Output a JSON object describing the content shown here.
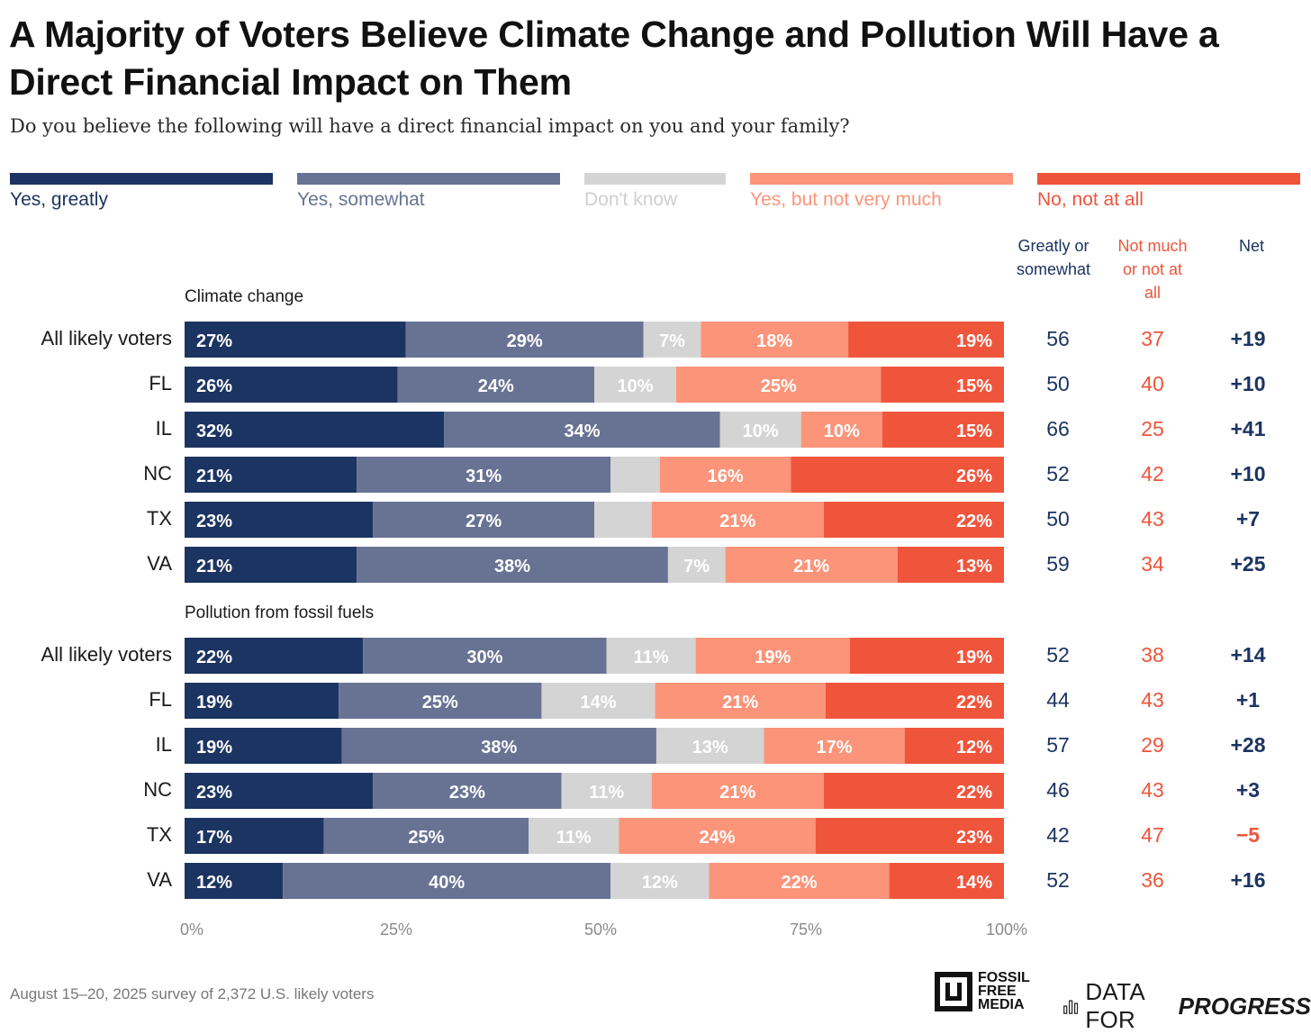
{
  "colors": {
    "yes_greatly": "#1c3461",
    "yes_somewhat": "#687394",
    "dont_know": "#d4d4d4",
    "yes_not_much": "#fb9479",
    "no_not_at_all": "#ef553b",
    "text_blue": "#1c3461",
    "text_red": "#ef553b",
    "dk_label": "#cfcfcf"
  },
  "chart_data": {
    "type": "bar",
    "orientation": "horizontal-stacked",
    "title": "A Majority of Voters Believe Climate Change and Pollution Will Have a Direct Financial Impact on Them",
    "subtitle": "Do you believe the following will have a direct financial impact on you and your family?",
    "legend": {
      "placement": "top",
      "items": [
        "Yes, greatly",
        "Yes, somewhat",
        "Don't know",
        "Yes, but not very much",
        "No, not at all"
      ]
    },
    "xlim": [
      0,
      100
    ],
    "x_ticks": [
      "0%",
      "25%",
      "50%",
      "75%",
      "100%"
    ],
    "columns": [
      "Greatly or somewhat",
      "Not much or not at all",
      "Net"
    ],
    "groups": [
      {
        "name": "Climate change",
        "rows": [
          {
            "label": "All likely voters",
            "values": [
              27,
              29,
              7,
              18,
              19
            ],
            "labels": [
              "27%",
              "29%",
              "7%",
              "18%",
              "19%"
            ],
            "greatly_or_somewhat": "56",
            "not_much": "37",
            "net": "+19"
          },
          {
            "label": "FL",
            "values": [
              26,
              24,
              10,
              25,
              15
            ],
            "labels": [
              "26%",
              "24%",
              "10%",
              "25%",
              "15%"
            ],
            "greatly_or_somewhat": "50",
            "not_much": "40",
            "net": "+10"
          },
          {
            "label": "IL",
            "values": [
              32,
              34,
              10,
              10,
              15
            ],
            "labels": [
              "32%",
              "34%",
              "10%",
              "10%",
              "15%"
            ],
            "greatly_or_somewhat": "66",
            "not_much": "25",
            "net": "+41"
          },
          {
            "label": "NC",
            "values": [
              21,
              31,
              6,
              16,
              26
            ],
            "labels": [
              "21%",
              "31%",
              "",
              "16%",
              "26%"
            ],
            "greatly_or_somewhat": "52",
            "not_much": "42",
            "net": "+10"
          },
          {
            "label": "TX",
            "values": [
              23,
              27,
              7,
              21,
              22
            ],
            "labels": [
              "23%",
              "27%",
              "",
              "21%",
              "22%"
            ],
            "greatly_or_somewhat": "50",
            "not_much": "43",
            "net": "+7"
          },
          {
            "label": "VA",
            "values": [
              21,
              38,
              7,
              21,
              13
            ],
            "labels": [
              "21%",
              "38%",
              "7%",
              "21%",
              "13%"
            ],
            "greatly_or_somewhat": "59",
            "not_much": "34",
            "net": "+25"
          }
        ]
      },
      {
        "name": "Pollution from fossil fuels",
        "rows": [
          {
            "label": "All likely voters",
            "values": [
              22,
              30,
              11,
              19,
              19
            ],
            "labels": [
              "22%",
              "30%",
              "11%",
              "19%",
              "19%"
            ],
            "greatly_or_somewhat": "52",
            "not_much": "38",
            "net": "+14"
          },
          {
            "label": "FL",
            "values": [
              19,
              25,
              14,
              21,
              22
            ],
            "labels": [
              "19%",
              "25%",
              "14%",
              "21%",
              "22%"
            ],
            "greatly_or_somewhat": "44",
            "not_much": "43",
            "net": "+1"
          },
          {
            "label": "IL",
            "values": [
              19,
              38,
              13,
              17,
              12
            ],
            "labels": [
              "19%",
              "38%",
              "13%",
              "17%",
              "12%"
            ],
            "greatly_or_somewhat": "57",
            "not_much": "29",
            "net": "+28"
          },
          {
            "label": "NC",
            "values": [
              23,
              23,
              11,
              21,
              22
            ],
            "labels": [
              "23%",
              "23%",
              "11%",
              "21%",
              "22%"
            ],
            "greatly_or_somewhat": "46",
            "not_much": "43",
            "net": "+3"
          },
          {
            "label": "TX",
            "values": [
              17,
              25,
              11,
              24,
              23
            ],
            "labels": [
              "17%",
              "25%",
              "11%",
              "24%",
              "23%"
            ],
            "greatly_or_somewhat": "42",
            "not_much": "47",
            "net": "−5"
          },
          {
            "label": "VA",
            "values": [
              12,
              40,
              12,
              22,
              14
            ],
            "labels": [
              "12%",
              "40%",
              "12%",
              "22%",
              "14%"
            ],
            "greatly_or_somewhat": "52",
            "not_much": "36",
            "net": "+16"
          }
        ]
      }
    ]
  },
  "column_headers": {
    "greatly_line1": "Greatly or",
    "greatly_line2": "somewhat",
    "notmuch_line1": "Not much",
    "notmuch_line2": "or not at",
    "notmuch_line3": "all",
    "net": "Net"
  },
  "footnote": "August 15–20, 2025 survey of 2,372 U.S. likely voters",
  "logos": {
    "fossil_line1": "FOSSIL",
    "fossil_line2": "FREE",
    "fossil_line3": "MEDIA",
    "dfp_part1": "DATA FOR",
    "dfp_part2": "PROGRESS"
  }
}
